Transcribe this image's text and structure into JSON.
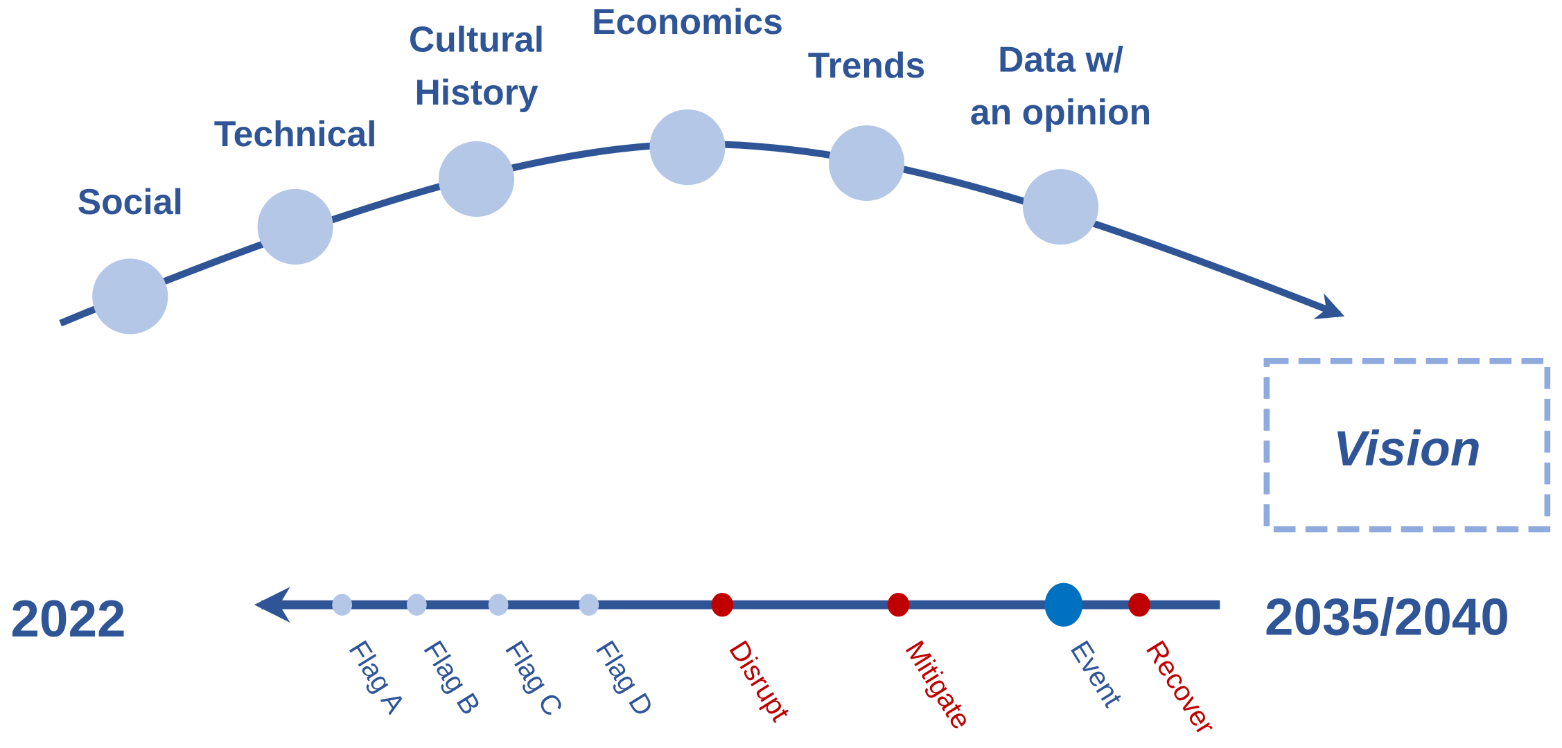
{
  "arc": {
    "nodes": [
      {
        "label": [
          "Social"
        ]
      },
      {
        "label": [
          "Technical"
        ]
      },
      {
        "label": [
          "Cultural",
          "History"
        ]
      },
      {
        "label": [
          "Economics"
        ]
      },
      {
        "label": [
          "Trends"
        ]
      },
      {
        "label": [
          "Data w/",
          "an opinion"
        ]
      }
    ]
  },
  "vision": "Vision",
  "timeline": {
    "start": "2022",
    "end": "2035/2040",
    "markers": [
      {
        "label": "Flag A"
      },
      {
        "label": "Flag B"
      },
      {
        "label": "Flag C"
      },
      {
        "label": "Flag D"
      },
      {
        "label": "Disrupt"
      },
      {
        "label": "Mitigate"
      },
      {
        "label": "Event"
      },
      {
        "label": "Recover"
      }
    ]
  }
}
